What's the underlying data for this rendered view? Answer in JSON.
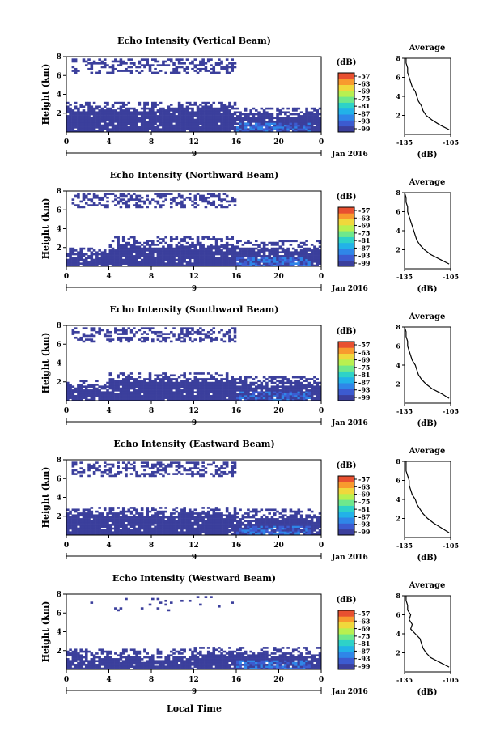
{
  "colors": {
    "echo_fill": "#3b3f9c",
    "colorbar": [
      "#3b3f9c",
      "#3c5bd0",
      "#2f86e8",
      "#22b2e8",
      "#2ed2c8",
      "#6ee88c",
      "#b8f050",
      "#f0d83c",
      "#f89a2e",
      "#e85030"
    ]
  },
  "common": {
    "x_ticks": [
      "0",
      "4",
      "8",
      "12",
      "16",
      "20",
      "0"
    ],
    "y_ticks": [
      "2",
      "4",
      "6",
      "8"
    ],
    "date_label": "9",
    "jan_label": "Jan 2016",
    "colorbar_unit": "(dB)",
    "colorbar_ticks": [
      "-57",
      "-63",
      "-69",
      "-75",
      "-81",
      "-87",
      "-93",
      "-99"
    ],
    "avg_title": "Average",
    "avg_ticks": [
      "-135",
      "-105"
    ],
    "avg_xlabel": "(dB)",
    "x_axis_label": "Local Time",
    "y_label": "Height (km)"
  },
  "chart_data": [
    {
      "type": "heatmap",
      "title": "Echo Intensity (Vertical Beam)",
      "ylabel": "Height (km)",
      "xlim": [
        0,
        24
      ],
      "ylim": [
        0,
        8
      ],
      "zlim": [
        -99,
        -57
      ],
      "profile": {
        "xlim": [
          -135,
          -105
        ],
        "heights": [
          0.5,
          1,
          1.5,
          2,
          2.5,
          3,
          3.5,
          4,
          4.5,
          5,
          5.5,
          6,
          6.5,
          7,
          7.5,
          8
        ],
        "values": [
          -106,
          -112,
          -117,
          -121,
          -123,
          -124,
          -126,
          -127,
          -128,
          -130,
          -131,
          -132,
          -133,
          -133,
          -134,
          -134
        ]
      }
    },
    {
      "type": "heatmap",
      "title": "Echo Intensity (Northward Beam)",
      "ylabel": "Height (km)",
      "xlim": [
        0,
        24
      ],
      "ylim": [
        0,
        8
      ],
      "zlim": [
        -99,
        -57
      ],
      "profile": {
        "xlim": [
          -135,
          -105
        ],
        "heights": [
          0.5,
          1,
          1.5,
          2,
          2.5,
          3,
          3.5,
          4,
          4.5,
          5,
          5.5,
          6,
          6.5,
          7,
          7.5,
          8
        ],
        "values": [
          -106,
          -112,
          -118,
          -122,
          -125,
          -127,
          -128,
          -129,
          -130,
          -131,
          -132,
          -133,
          -133,
          -134,
          -134,
          -135
        ]
      }
    },
    {
      "type": "heatmap",
      "title": "Echo Intensity (Southward Beam)",
      "ylabel": "Height (km)",
      "xlim": [
        0,
        24
      ],
      "ylim": [
        0,
        8
      ],
      "zlim": [
        -99,
        -57
      ],
      "profile": {
        "xlim": [
          -135,
          -105
        ],
        "heights": [
          0.5,
          1,
          1.5,
          2,
          2.5,
          3,
          3.5,
          4,
          4.5,
          5,
          5.5,
          6,
          6.5,
          7,
          7.5,
          8
        ],
        "values": [
          -106,
          -111,
          -117,
          -121,
          -124,
          -126,
          -127,
          -128,
          -130,
          -131,
          -132,
          -133,
          -133,
          -134,
          -134,
          -135
        ]
      }
    },
    {
      "type": "heatmap",
      "title": "Echo Intensity (Eastward Beam)",
      "ylabel": "Height (km)",
      "xlim": [
        0,
        24
      ],
      "ylim": [
        0,
        8
      ],
      "zlim": [
        -99,
        -57
      ],
      "profile": {
        "xlim": [
          -135,
          -105
        ],
        "heights": [
          0.5,
          1,
          1.5,
          2,
          2.5,
          3,
          3.5,
          4,
          4.5,
          5,
          5.5,
          6,
          6.5,
          7,
          7.5,
          8
        ],
        "values": [
          -106,
          -111,
          -116,
          -120,
          -123,
          -125,
          -127,
          -128,
          -130,
          -131,
          -132,
          -132,
          -133,
          -134,
          -134,
          -134
        ]
      }
    },
    {
      "type": "heatmap",
      "title": "Echo Intensity (Westward Beam)",
      "ylabel": "Height (km)",
      "xlim": [
        0,
        24
      ],
      "ylim": [
        0,
        8
      ],
      "zlim": [
        -99,
        -57
      ],
      "profile": {
        "xlim": [
          -135,
          -105
        ],
        "heights": [
          0.5,
          1,
          1.5,
          2,
          2.5,
          3,
          3.5,
          4,
          4.5,
          5,
          5.5,
          6,
          6.5,
          7,
          7.5,
          8
        ],
        "values": [
          -106,
          -112,
          -118,
          -121,
          -123,
          -124,
          -125,
          -128,
          -131,
          -130,
          -132,
          -131,
          -133,
          -133,
          -134,
          -134
        ]
      }
    }
  ]
}
